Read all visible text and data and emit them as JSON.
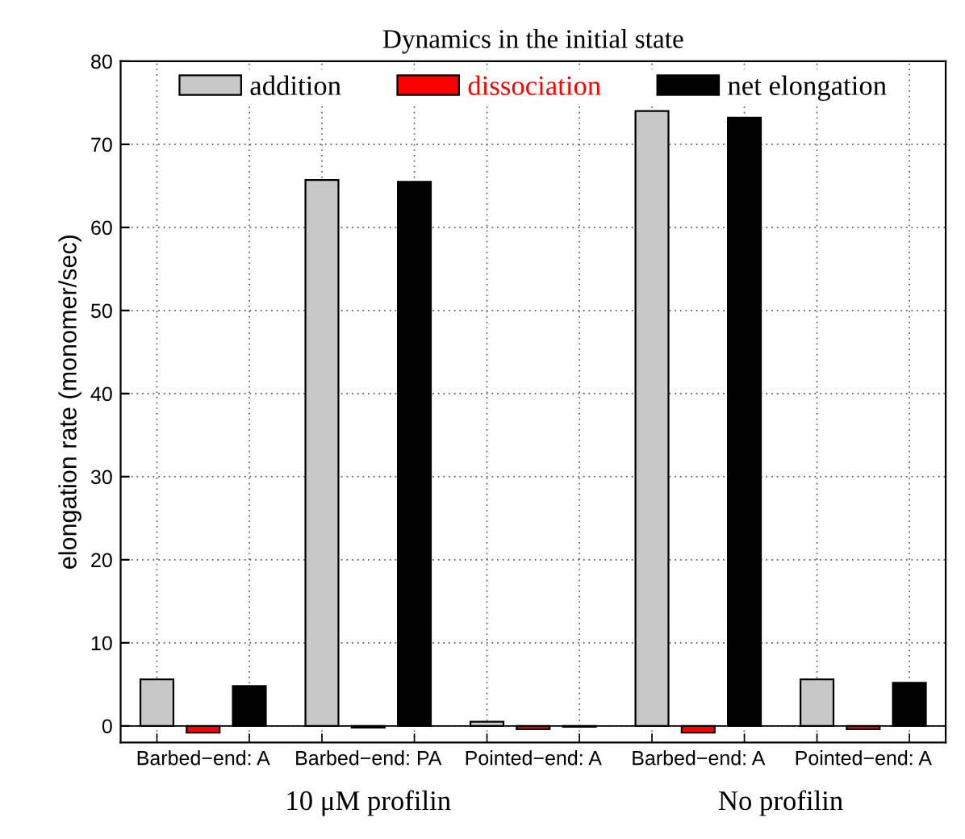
{
  "chart_data": {
    "type": "bar",
    "title": "Dynamics in the initial state",
    "ylabel": "elongation rate (monomer/sec)",
    "categories": [
      "Barbed−end: A",
      "Barbed−end: PA",
      "Pointed−end: A",
      "Barbed−end: A",
      "Pointed−end: A"
    ],
    "series": [
      {
        "name": "addition",
        "color": "#c8c8c8",
        "values": [
          5.6,
          65.7,
          0.5,
          74.0,
          5.6
        ]
      },
      {
        "name": "dissociation",
        "color": "#ff0000",
        "values": [
          -0.8,
          -0.2,
          -0.4,
          -0.8,
          -0.4
        ]
      },
      {
        "name": "net elongation",
        "color": "#000000",
        "values": [
          4.8,
          65.5,
          -0.1,
          73.2,
          5.2
        ]
      }
    ],
    "ylim": [
      -2,
      80
    ],
    "yticks": [
      0,
      10,
      20,
      30,
      40,
      50,
      60,
      70,
      80
    ],
    "grid": true,
    "legend": "top",
    "annotations": [
      "10 μM profilin",
      "No profilin"
    ]
  }
}
